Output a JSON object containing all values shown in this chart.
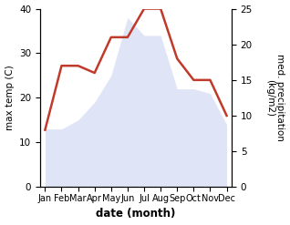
{
  "months": [
    "Jan",
    "Feb",
    "Mar",
    "Apr",
    "May",
    "Jun",
    "Jul",
    "Aug",
    "Sep",
    "Oct",
    "Nov",
    "Dec"
  ],
  "temp": [
    13,
    13,
    15,
    19,
    25,
    38,
    34,
    34,
    22,
    22,
    21,
    14
  ],
  "precip": [
    8,
    17,
    17,
    16,
    21,
    21,
    25,
    25,
    18,
    15,
    15,
    10
  ],
  "temp_fill_color": "#c5d0f0",
  "precip_color": "#c0392b",
  "left_ylabel": "max temp (C)",
  "right_ylabel": "med. precipitation\n(kg/m2)",
  "xlabel": "date (month)",
  "ylim_left": [
    0,
    40
  ],
  "ylim_right": [
    0,
    25
  ],
  "yticks_left": [
    0,
    10,
    20,
    30,
    40
  ],
  "yticks_right": [
    0,
    5,
    10,
    15,
    20,
    25
  ],
  "fill_alpha": 0.55,
  "precip_linewidth": 1.8,
  "bg_color": "#ffffff"
}
